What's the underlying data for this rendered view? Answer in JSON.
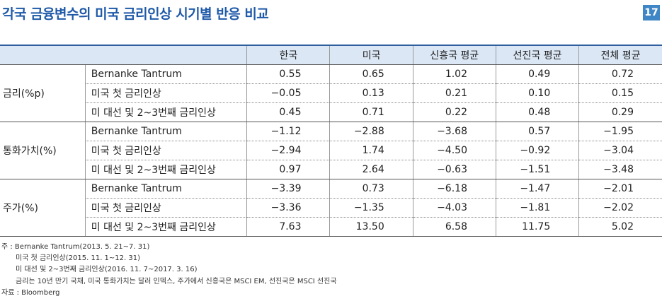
{
  "header": {
    "title": "각국 금융변수의 미국 금리인상 시기별 반응 비교",
    "page_number": "17"
  },
  "table": {
    "columns": [
      "한국",
      "미국",
      "신흥국 평균",
      "선진국 평균",
      "전체 평균"
    ],
    "groups": [
      {
        "name": "금리(%p)",
        "rows": [
          {
            "label": "Bernanke Tantrum",
            "values": [
              "0.55",
              "0.65",
              "1.02",
              "0.49",
              "0.72"
            ]
          },
          {
            "label": "미국 첫 금리인상",
            "values": [
              "−0.05",
              "0.13",
              "0.21",
              "0.10",
              "0.15"
            ]
          },
          {
            "label": "미 대선 및 2~3번째 금리인상",
            "values": [
              "0.45",
              "0.71",
              "0.22",
              "0.48",
              "0.29"
            ]
          }
        ]
      },
      {
        "name": "통화가치(%)",
        "rows": [
          {
            "label": "Bernanke Tantrum",
            "values": [
              "−1.12",
              "−2.88",
              "−3.68",
              "0.57",
              "−1.95"
            ]
          },
          {
            "label": "미국 첫 금리인상",
            "values": [
              "−2.94",
              "1.74",
              "−4.50",
              "−0.92",
              "−3.04"
            ]
          },
          {
            "label": "미 대선 및 2~3번째 금리인상",
            "values": [
              "0.97",
              "2.64",
              "−0.63",
              "−1.51",
              "−3.48"
            ]
          }
        ]
      },
      {
        "name": "주가(%)",
        "rows": [
          {
            "label": "Bernanke Tantrum",
            "values": [
              "−3.39",
              "0.73",
              "−6.18",
              "−1.47",
              "−2.01"
            ]
          },
          {
            "label": "미국 첫 금리인상",
            "values": [
              "−3.36",
              "−1.35",
              "−4.03",
              "−1.81",
              "−2.02"
            ]
          },
          {
            "label": "미 대선 및 2~3번째 금리인상",
            "values": [
              "7.63",
              "13.50",
              "6.58",
              "11.75",
              "5.02"
            ]
          }
        ]
      }
    ]
  },
  "notes": {
    "line1": "주 : Bernanke Tantrum(2013. 5. 21~7. 31)",
    "line2": "미국 첫 금리인상(2015. 11. 1~12. 31)",
    "line3": "미 대선 및 2~3번째 금리인상(2016. 11. 7~2017. 3. 16)",
    "line4": "금리는 10년 만기 국채, 미국 통화가치는 달러 인덱스, 주가에서 신흥국은 MSCI EM, 선진국은 MSCI 선진국",
    "source": "자료 : Bloomberg"
  }
}
